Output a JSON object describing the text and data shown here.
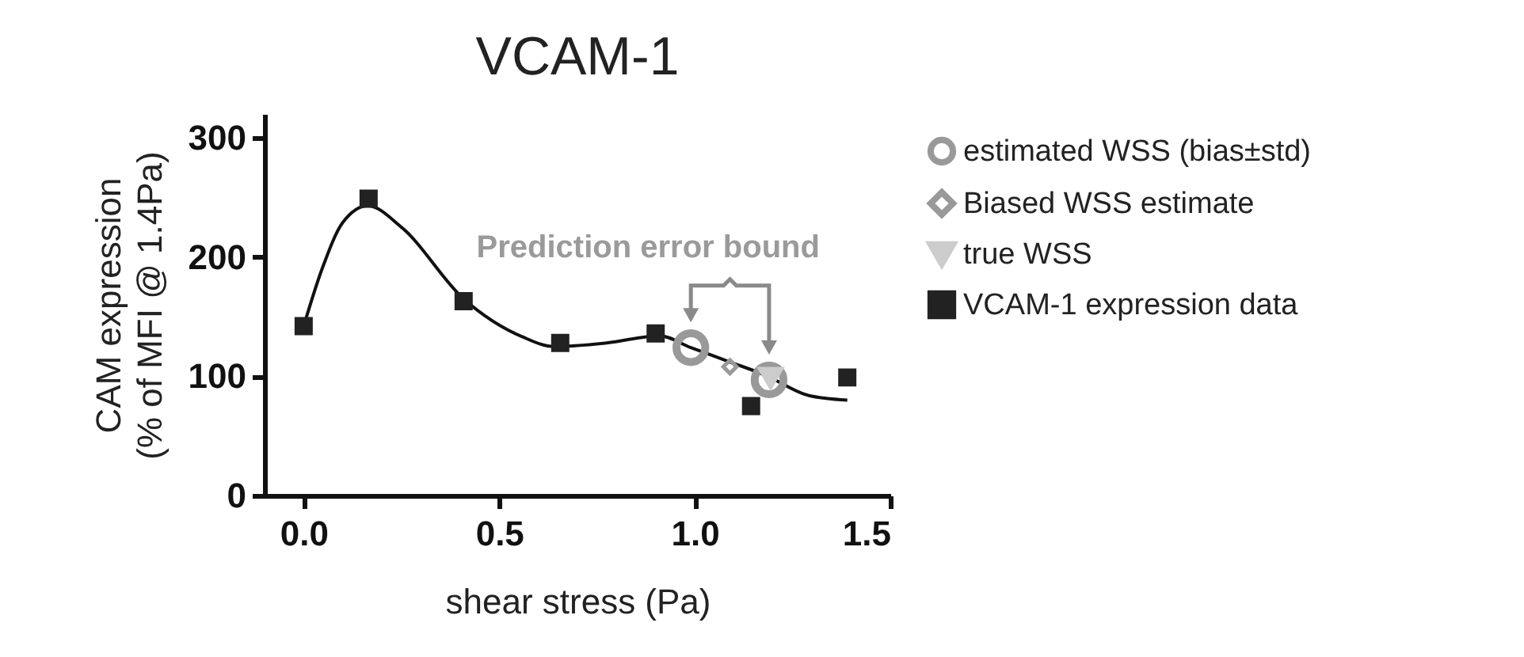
{
  "chart_data": {
    "type": "scatter",
    "title": "VCAM-1",
    "xlabel": "shear stress (Pa)",
    "ylabel": "CAM expression\n(% of MFI @ 1.4Pa)",
    "xlim": [
      -0.1,
      1.5
    ],
    "xticks": [
      {
        "value": 0,
        "label": "0.0"
      },
      {
        "value": 0.5,
        "label": "0.5"
      },
      {
        "value": 1,
        "label": "1.0"
      },
      {
        "value": 1.5,
        "label": "1.5"
      }
    ],
    "ylim": [
      0,
      320
    ],
    "yticks": [
      0,
      100,
      200,
      300
    ],
    "grid": false,
    "legend": "right",
    "annotations": [
      "Prediction error bound"
    ],
    "series": [
      {
        "type": "line",
        "color": "#111111",
        "marker": "none",
        "x": [
          0,
          0.047,
          0.1,
          0.164,
          0.25,
          0.409,
          0.56,
          0.64,
          0.775,
          0.91,
          0.99,
          1.09,
          1.18,
          1.29,
          1.39
        ],
        "values": [
          142,
          190,
          229,
          243,
          225,
          165,
          133,
          125,
          128,
          134,
          124,
          112,
          101,
          84,
          80
        ]
      },
      {
        "name": "estimated WSS (bias±std)",
        "color": "#999999",
        "marker": "circle",
        "x": [
          0.99,
          1.19
        ],
        "values": [
          124,
          97
        ]
      },
      {
        "name": "Biased WSS estimate",
        "color": "#999999",
        "marker": "diamond",
        "x": [
          1.09
        ],
        "values": [
          108
        ]
      },
      {
        "name": "true WSS",
        "color": "#cccccc",
        "marker": "triangle",
        "x": [
          1.194
        ],
        "values": [
          98
        ]
      },
      {
        "name": "VCAM-1 expression data",
        "color": "#222222",
        "marker": "square",
        "x": [
          0,
          0.166,
          0.409,
          0.656,
          0.9,
          1.144,
          1.39
        ],
        "values": [
          142,
          249,
          163,
          128,
          136,
          75,
          99
        ]
      }
    ]
  }
}
